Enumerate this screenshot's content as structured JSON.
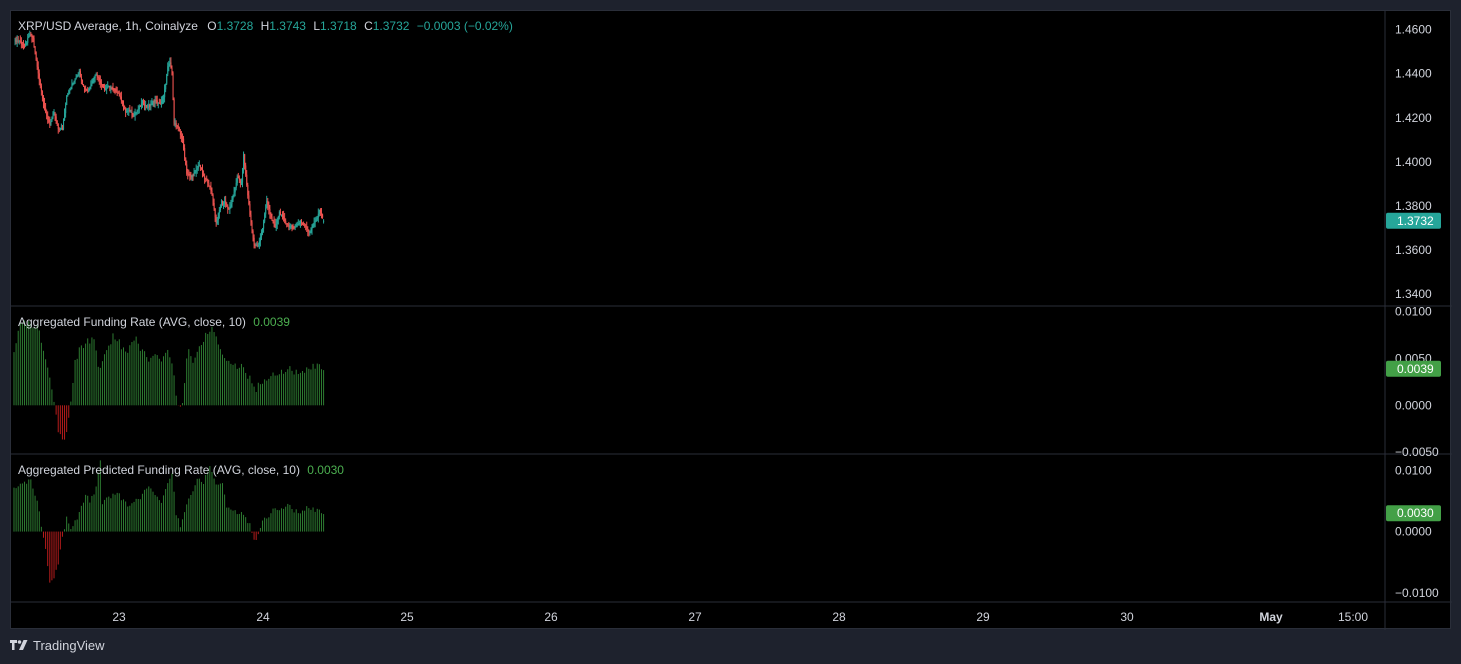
{
  "colors": {
    "up": "#26a69a",
    "down": "#ef5350",
    "pos_hist": "#2e7d32",
    "neg_hist": "#b71c1c",
    "price_tag_bg": "#26a69a",
    "green_tag_bg": "#43a047",
    "axis_text": "#d1d4dc",
    "separator": "#2a2e39"
  },
  "legend": {
    "symbol": "XRP/USD Average, 1h, Coinalyze",
    "o_label": "O",
    "o_value": "1.3728",
    "h_label": "H",
    "h_value": "1.3743",
    "l_label": "L",
    "l_value": "1.3718",
    "c_label": "C",
    "c_value": "1.3732",
    "change": "−0.0003 (−0.02%)"
  },
  "funding_legend": {
    "label": "Aggregated Funding Rate (AVG, close, 10)",
    "value": "0.0039"
  },
  "predicted_legend": {
    "label": "Aggregated Predicted Funding Rate (AVG, close, 10)",
    "value": "0.0030"
  },
  "price_axis": {
    "ticks": [
      "1.4600",
      "1.4400",
      "1.4200",
      "1.4000",
      "1.3800",
      "1.3600",
      "1.3400"
    ],
    "last_price": "1.3732"
  },
  "funding_axis": {
    "ticks": [
      "0.0100",
      "0.0050",
      "0.0000",
      "−0.0050"
    ],
    "last_value": "0.0039"
  },
  "predicted_axis": {
    "ticks": [
      "0.0100",
      "0.0000",
      "−0.0100"
    ],
    "last_value": "0.0030"
  },
  "time_axis": {
    "labels": [
      "23",
      "24",
      "25",
      "26",
      "27",
      "28",
      "29",
      "30",
      "May",
      "15:00"
    ]
  },
  "brand": {
    "name": "TradingView"
  },
  "chart_data": [
    {
      "type": "candlestick",
      "title": "XRP/USD Average, 1h, Coinalyze",
      "interval": "1h",
      "ylim": [
        1.3345,
        1.4685
      ],
      "x_start": "Apr 22 ~09:00",
      "close_path": [
        [
          0,
          1.455
        ],
        [
          5,
          1.455
        ],
        [
          10,
          1.452
        ],
        [
          15,
          1.458
        ],
        [
          18,
          1.456
        ],
        [
          22,
          1.443
        ],
        [
          26,
          1.432
        ],
        [
          30,
          1.422
        ],
        [
          34,
          1.417
        ],
        [
          38,
          1.422
        ],
        [
          42,
          1.415
        ],
        [
          46,
          1.415
        ],
        [
          50,
          1.43
        ],
        [
          54,
          1.434
        ],
        [
          58,
          1.438
        ],
        [
          62,
          1.441
        ],
        [
          66,
          1.434
        ],
        [
          70,
          1.432
        ],
        [
          74,
          1.437
        ],
        [
          78,
          1.44
        ],
        [
          82,
          1.436
        ],
        [
          86,
          1.433
        ],
        [
          90,
          1.434
        ],
        [
          94,
          1.433
        ],
        [
          98,
          1.432
        ],
        [
          102,
          1.428
        ],
        [
          106,
          1.423
        ],
        [
          110,
          1.423
        ],
        [
          114,
          1.421
        ],
        [
          118,
          1.424
        ],
        [
          122,
          1.427
        ],
        [
          126,
          1.425
        ],
        [
          130,
          1.426
        ],
        [
          134,
          1.428
        ],
        [
          138,
          1.426
        ],
        [
          142,
          1.429
        ],
        [
          146,
          1.443
        ],
        [
          148,
          1.445
        ],
        [
          150,
          1.44
        ],
        [
          152,
          1.418
        ],
        [
          156,
          1.415
        ],
        [
          160,
          1.41
        ],
        [
          164,
          1.395
        ],
        [
          168,
          1.393
        ],
        [
          172,
          1.395
        ],
        [
          176,
          1.399
        ],
        [
          180,
          1.393
        ],
        [
          184,
          1.391
        ],
        [
          188,
          1.385
        ],
        [
          192,
          1.372
        ],
        [
          196,
          1.38
        ],
        [
          200,
          1.382
        ],
        [
          204,
          1.378
        ],
        [
          208,
          1.384
        ],
        [
          212,
          1.393
        ],
        [
          216,
          1.39
        ],
        [
          218,
          1.403
        ],
        [
          220,
          1.394
        ],
        [
          224,
          1.376
        ],
        [
          228,
          1.362
        ],
        [
          232,
          1.362
        ],
        [
          236,
          1.37
        ],
        [
          240,
          1.382
        ],
        [
          244,
          1.375
        ],
        [
          248,
          1.37
        ],
        [
          252,
          1.377
        ],
        [
          256,
          1.374
        ],
        [
          260,
          1.371
        ],
        [
          264,
          1.37
        ],
        [
          268,
          1.371
        ],
        [
          272,
          1.373
        ],
        [
          276,
          1.371
        ],
        [
          280,
          1.368
        ],
        [
          284,
          1.371
        ],
        [
          288,
          1.375
        ],
        [
          290,
          1.378
        ],
        [
          294,
          1.3732
        ]
      ],
      "last": {
        "open": 1.3728,
        "high": 1.3743,
        "low": 1.3718,
        "close": 1.3732
      }
    },
    {
      "type": "histogram",
      "title": "Aggregated Funding Rate (AVG, close, 10)",
      "ylim": [
        -0.0052,
        0.0105
      ],
      "series_path": [
        [
          0,
          0.0055
        ],
        [
          5,
          0.0085
        ],
        [
          12,
          0.0088
        ],
        [
          22,
          0.0085
        ],
        [
          27,
          0.0065
        ],
        [
          33,
          0.004
        ],
        [
          38,
          0.0005
        ],
        [
          42,
          -0.0025
        ],
        [
          46,
          -0.0038
        ],
        [
          50,
          -0.0028
        ],
        [
          54,
          0.0005
        ],
        [
          58,
          0.0045
        ],
        [
          62,
          0.006
        ],
        [
          70,
          0.0068
        ],
        [
          76,
          0.007
        ],
        [
          80,
          0.004
        ],
        [
          88,
          0.0055
        ],
        [
          94,
          0.0075
        ],
        [
          100,
          0.0068
        ],
        [
          106,
          0.0055
        ],
        [
          110,
          0.0062
        ],
        [
          116,
          0.007
        ],
        [
          122,
          0.0058
        ],
        [
          128,
          0.0048
        ],
        [
          134,
          0.0055
        ],
        [
          140,
          0.0045
        ],
        [
          146,
          0.006
        ],
        [
          150,
          0.0045
        ],
        [
          156,
          -0.0002
        ],
        [
          160,
          0.0005
        ],
        [
          165,
          0.006
        ],
        [
          170,
          0.0048
        ],
        [
          176,
          0.006
        ],
        [
          182,
          0.0075
        ],
        [
          188,
          0.0085
        ],
        [
          194,
          0.0065
        ],
        [
          200,
          0.005
        ],
        [
          206,
          0.0045
        ],
        [
          212,
          0.0042
        ],
        [
          218,
          0.004
        ],
        [
          224,
          0.0028
        ],
        [
          230,
          0.0018
        ],
        [
          236,
          0.0025
        ],
        [
          242,
          0.003
        ],
        [
          250,
          0.0035
        ],
        [
          256,
          0.0035
        ],
        [
          262,
          0.004
        ],
        [
          268,
          0.0035
        ],
        [
          274,
          0.0035
        ],
        [
          280,
          0.0038
        ],
        [
          286,
          0.0042
        ],
        [
          294,
          0.0039
        ]
      ]
    },
    {
      "type": "histogram",
      "title": "Aggregated Predicted Funding Rate (AVG, close, 10)",
      "ylim": [
        -0.0115,
        0.0125
      ],
      "series_path": [
        [
          0,
          0.007
        ],
        [
          10,
          0.0078
        ],
        [
          16,
          0.0085
        ],
        [
          22,
          0.005
        ],
        [
          26,
          0.001
        ],
        [
          30,
          -0.0025
        ],
        [
          34,
          -0.008
        ],
        [
          38,
          -0.0075
        ],
        [
          42,
          -0.005
        ],
        [
          46,
          -0.001
        ],
        [
          50,
          0.0025
        ],
        [
          54,
          0.0005
        ],
        [
          58,
          0.0015
        ],
        [
          62,
          0.003
        ],
        [
          68,
          0.006
        ],
        [
          72,
          0.005
        ],
        [
          76,
          0.006
        ],
        [
          78,
          0.007
        ],
        [
          82,
          0.012
        ],
        [
          84,
          0.0045
        ],
        [
          90,
          0.0055
        ],
        [
          98,
          0.0065
        ],
        [
          104,
          0.005
        ],
        [
          110,
          0.004
        ],
        [
          116,
          0.005
        ],
        [
          122,
          0.006
        ],
        [
          128,
          0.0075
        ],
        [
          134,
          0.006
        ],
        [
          140,
          0.0045
        ],
        [
          146,
          0.008
        ],
        [
          150,
          0.0095
        ],
        [
          154,
          0.003
        ],
        [
          158,
          0.001
        ],
        [
          162,
          0.0035
        ],
        [
          168,
          0.006
        ],
        [
          174,
          0.0085
        ],
        [
          180,
          0.008
        ],
        [
          186,
          0.011
        ],
        [
          192,
          0.0075
        ],
        [
          198,
          0.008
        ],
        [
          202,
          0.004
        ],
        [
          208,
          0.0035
        ],
        [
          214,
          0.003
        ],
        [
          220,
          0.0025
        ],
        [
          224,
          0.001
        ],
        [
          228,
          -0.0012
        ],
        [
          232,
          -0.0008
        ],
        [
          236,
          0.002
        ],
        [
          242,
          0.0025
        ],
        [
          248,
          0.004
        ],
        [
          254,
          0.0035
        ],
        [
          260,
          0.0045
        ],
        [
          266,
          0.0035
        ],
        [
          272,
          0.003
        ],
        [
          278,
          0.0038
        ],
        [
          286,
          0.0035
        ],
        [
          294,
          0.003
        ]
      ]
    }
  ]
}
